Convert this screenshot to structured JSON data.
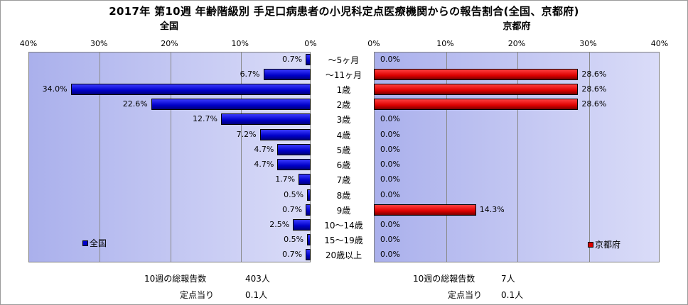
{
  "title": "2017年 第10週 年齢階級別 手足口病患者の小児科定点医療機関からの報告割合(全国、京都府)",
  "chart_data": {
    "type": "bar",
    "categories": [
      "～5ヶ月",
      "～11ヶ月",
      "1歳",
      "2歳",
      "3歳",
      "4歳",
      "5歳",
      "6歳",
      "7歳",
      "8歳",
      "9歳",
      "10～14歳",
      "15～19歳",
      "20歳以上"
    ],
    "panels": [
      {
        "title": "全国",
        "orientation": "horizontal-reversed",
        "xlim": [
          0,
          40
        ],
        "ticks": [
          "40%",
          "30%",
          "20%",
          "10%",
          "0%"
        ],
        "series": [
          {
            "name": "全国",
            "values": [
              0.7,
              6.7,
              34.0,
              22.6,
              12.7,
              7.2,
              4.7,
              4.7,
              1.7,
              0.5,
              0.7,
              2.5,
              0.5,
              0.7
            ]
          }
        ],
        "value_labels": [
          "0.7%",
          "6.7%",
          "34.0%",
          "22.6%",
          "12.7%",
          "7.2%",
          "4.7%",
          "4.7%",
          "1.7%",
          "0.5%",
          "0.7%",
          "2.5%",
          "0.5%",
          "0.7%"
        ],
        "color": "#0000cc",
        "legend_position": "bottom-left",
        "footer": {
          "total_label": "10週の総報告数",
          "total_value": "403人",
          "per_label": "定点当り",
          "per_value": "0.1人"
        }
      },
      {
        "title": "京都府",
        "orientation": "horizontal",
        "xlim": [
          0,
          40
        ],
        "ticks": [
          "0%",
          "10%",
          "20%",
          "30%",
          "40%"
        ],
        "series": [
          {
            "name": "京都府",
            "values": [
              0.0,
              28.6,
              28.6,
              28.6,
              0.0,
              0.0,
              0.0,
              0.0,
              0.0,
              0.0,
              14.3,
              0.0,
              0.0,
              0.0
            ]
          }
        ],
        "value_labels": [
          "0.0%",
          "28.6%",
          "28.6%",
          "28.6%",
          "0.0%",
          "0.0%",
          "0.0%",
          "0.0%",
          "0.0%",
          "0.0%",
          "14.3%",
          "0.0%",
          "0.0%",
          "0.0%"
        ],
        "color": "#dd0000",
        "legend_position": "bottom-right",
        "footer": {
          "total_label": "10週の総報告数",
          "total_value": "7人",
          "per_label": "定点当り",
          "per_value": "0.1人"
        }
      }
    ],
    "grid": true
  }
}
